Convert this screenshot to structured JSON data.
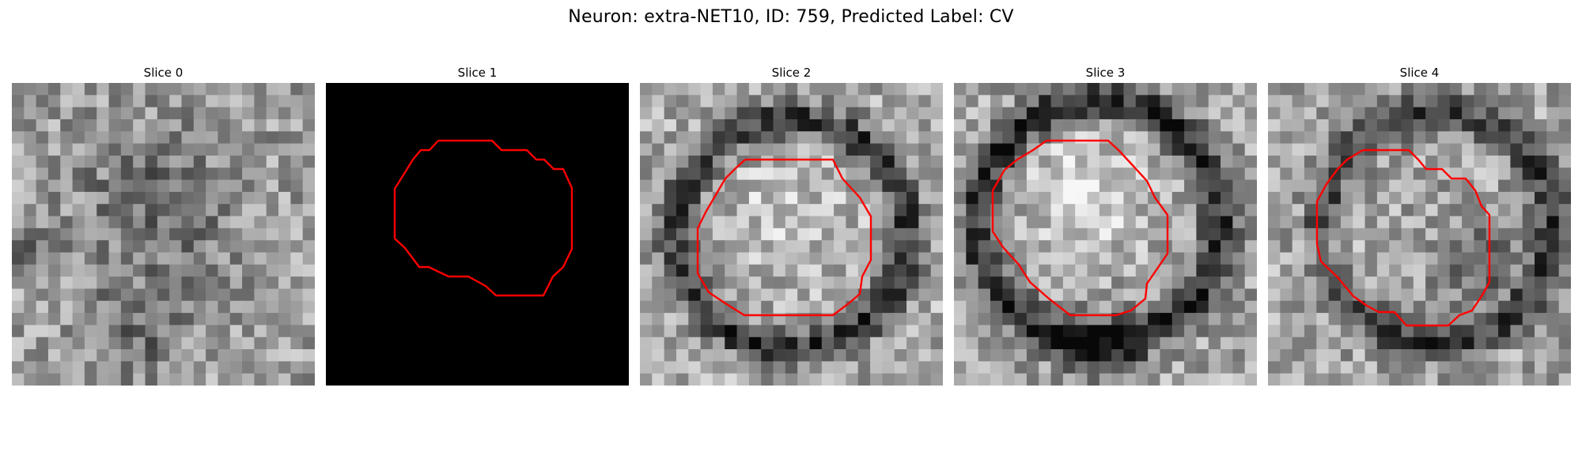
{
  "figure": {
    "title": "Neuron: extra-NET10, ID: 759, Predicted Label: CV"
  },
  "panels": [
    {
      "title": "Slice 0",
      "image": "grayscale-em-patch",
      "contour": false
    },
    {
      "title": "Slice 1",
      "image": "black-mask",
      "contour": true
    },
    {
      "title": "Slice 2",
      "image": "grayscale-em-patch",
      "contour": true
    },
    {
      "title": "Slice 3",
      "image": "grayscale-em-patch",
      "contour": true
    },
    {
      "title": "Slice 4",
      "image": "grayscale-em-patch",
      "contour": true
    }
  ],
  "colors": {
    "contour": "#ff0000",
    "mask_background": "#000000",
    "page_background": "#ffffff"
  }
}
